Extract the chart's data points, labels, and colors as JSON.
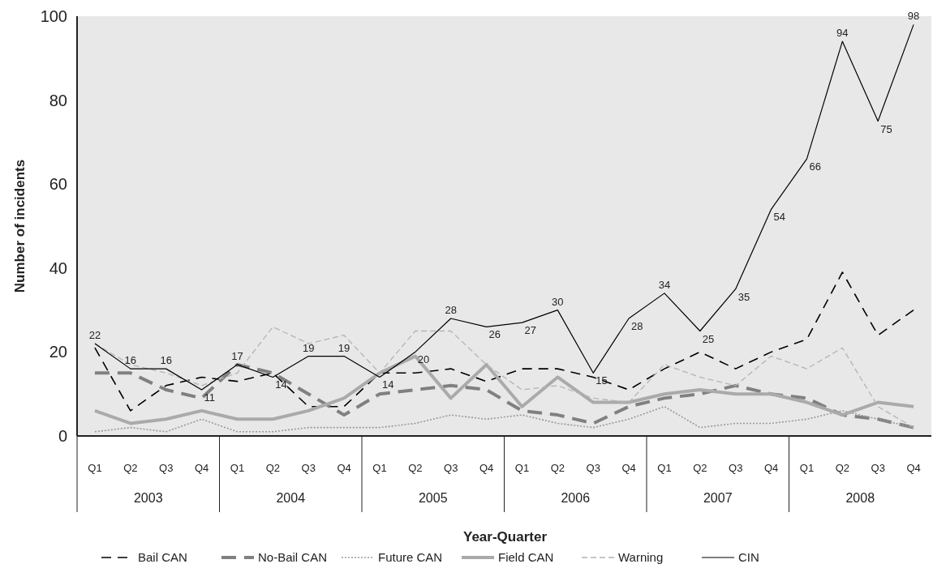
{
  "chart_data": {
    "type": "line",
    "xlabel": "Year-Quarter",
    "ylabel": "Number of incidents",
    "categories": [
      "Q1",
      "Q2",
      "Q3",
      "Q4",
      "Q1",
      "Q2",
      "Q3",
      "Q4",
      "Q1",
      "Q2",
      "Q3",
      "Q4",
      "Q1",
      "Q2",
      "Q3",
      "Q4",
      "Q1",
      "Q2",
      "Q3",
      "Q4",
      "Q1",
      "Q2",
      "Q3",
      "Q4"
    ],
    "annotations": [
      "2003",
      "2004",
      "2005",
      "2006",
      "2007",
      "2008"
    ],
    "ylim": [
      0,
      100
    ],
    "yticks": [
      0,
      20,
      40,
      60,
      80,
      100
    ],
    "grid": false,
    "legend": "bottom",
    "marker": "none",
    "series": [
      {
        "name": "Bail CAN",
        "color": "#000000",
        "line_style": "dashed",
        "values": [
          21,
          6,
          12,
          14,
          13,
          15,
          7,
          7,
          15,
          15,
          16,
          13,
          16,
          16,
          14,
          11,
          16,
          20,
          16,
          20,
          23,
          39,
          24,
          30
        ]
      },
      {
        "name": "No-Bail CAN",
        "color": "#808080",
        "line_style": "dashed",
        "values": [
          15,
          15,
          11,
          9,
          17,
          15,
          10,
          5,
          10,
          11,
          12,
          11,
          6,
          5,
          3,
          7,
          9,
          10,
          12,
          10,
          9,
          5,
          4,
          2
        ]
      },
      {
        "name": "Future CAN",
        "color": "#999999",
        "line_style": "dotted",
        "values": [
          1,
          2,
          1,
          4,
          1,
          1,
          2,
          2,
          2,
          3,
          5,
          4,
          5,
          3,
          2,
          4,
          7,
          2,
          3,
          3,
          4,
          6,
          4,
          2
        ]
      },
      {
        "name": "Field CAN",
        "color": "#aaaaaa",
        "line_style": "solid",
        "values": [
          6,
          3,
          4,
          6,
          4,
          4,
          6,
          9,
          15,
          19,
          9,
          17,
          7,
          14,
          8,
          8,
          10,
          11,
          10,
          10,
          8,
          5,
          8,
          7
        ]
      },
      {
        "name": "Warning",
        "color": "#b4b4b4",
        "line_style": "dashed",
        "values": [
          22,
          17,
          15,
          12,
          15,
          26,
          22,
          24,
          15,
          25,
          25,
          17,
          11,
          12,
          9,
          8,
          17,
          14,
          12,
          19,
          16,
          21,
          7,
          2
        ]
      },
      {
        "name": "CIN",
        "color": "#000000",
        "line_style": "solid",
        "values": [
          22,
          16,
          16,
          11,
          17,
          14,
          19,
          19,
          14,
          20,
          28,
          26,
          27,
          30,
          15,
          28,
          34,
          25,
          35,
          54,
          66,
          94,
          75,
          98
        ],
        "value_labels": [
          "22",
          "16",
          "16",
          "11",
          "17",
          "14",
          "19",
          "19",
          "14",
          "20",
          "28",
          "26",
          "27",
          "30",
          "15",
          "28",
          "34",
          "25",
          "35",
          "54",
          "66",
          "94",
          "75",
          "98"
        ]
      }
    ]
  }
}
